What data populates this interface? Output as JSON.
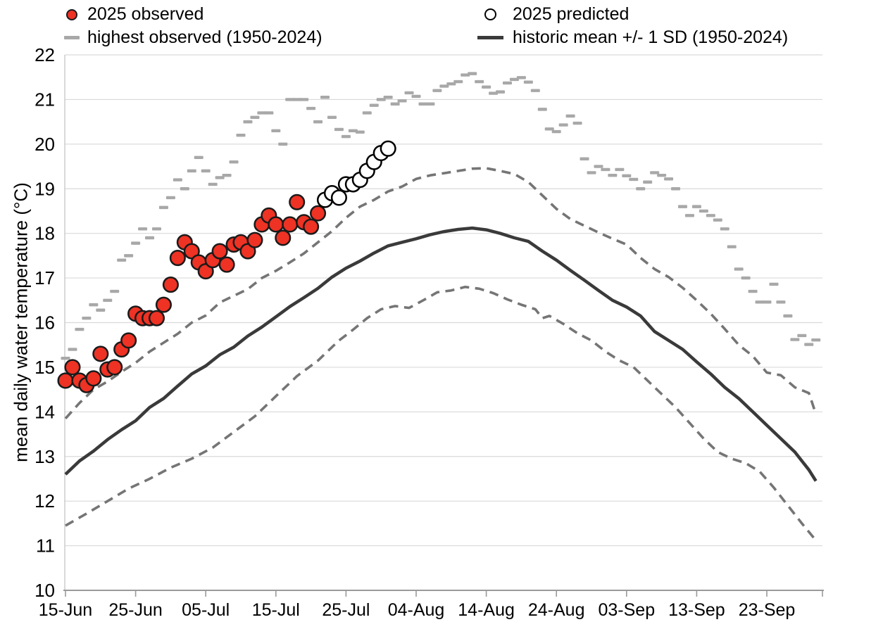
{
  "legend_note": "two-column legend at top of chart",
  "chart_data": {
    "type": "scatter",
    "title": "",
    "ylabel": "mean daily water temperature (°C)",
    "ylim": [
      10,
      22
    ],
    "yticks": [
      10,
      11,
      12,
      13,
      14,
      15,
      16,
      17,
      18,
      19,
      20,
      21,
      22
    ],
    "grid": true,
    "legend_position": "top",
    "x_axis": {
      "start_label": "15-Jun",
      "tick_interval_days": 10,
      "total_days": 108,
      "tick_labels": [
        "15-Jun",
        "25-Jun",
        "05-Jul",
        "15-Jul",
        "25-Jul",
        "04-Aug",
        "14-Aug",
        "24-Aug",
        "03-Sep",
        "13-Sep",
        "23-Sep"
      ]
    },
    "series": [
      {
        "id": "observed-2025",
        "label": "2025 observed",
        "type": "points",
        "marker": "filled-circle",
        "color": "#ee3224",
        "stroke": "#1a1a1a",
        "start_day": 0,
        "step_days": 1,
        "values": [
          14.7,
          15.0,
          14.7,
          14.6,
          14.75,
          15.3,
          14.95,
          15.0,
          15.4,
          15.6,
          16.2,
          16.1,
          16.1,
          16.1,
          16.4,
          16.85,
          17.45,
          17.8,
          17.6,
          17.35,
          17.15,
          17.4,
          17.6,
          17.3,
          17.75,
          17.8,
          17.6,
          17.85,
          18.2,
          18.4,
          18.2,
          17.9,
          18.2,
          18.7,
          18.25,
          18.15,
          18.45
        ]
      },
      {
        "id": "highest-observed",
        "label": "highest observed (1950-2024)",
        "type": "dash-markers",
        "color": "#a8a8a8",
        "start_day": 0,
        "step_days": 1,
        "values": [
          15.2,
          15.4,
          15.85,
          16.1,
          16.4,
          16.28,
          16.5,
          16.7,
          17.4,
          17.5,
          17.78,
          18.1,
          17.9,
          18.1,
          18.58,
          18.8,
          19.2,
          19.0,
          19.4,
          19.7,
          19.4,
          19.1,
          19.25,
          19.3,
          19.6,
          20.2,
          20.5,
          20.6,
          20.7,
          20.7,
          20.3,
          20.0,
          21.0,
          21.0,
          21.0,
          20.8,
          20.5,
          21.05,
          20.6,
          20.33,
          20.17,
          20.3,
          20.27,
          20.7,
          20.87,
          21.0,
          21.05,
          20.9,
          20.97,
          21.15,
          21.07,
          20.9,
          20.9,
          21.2,
          21.3,
          21.35,
          21.4,
          21.55,
          21.58,
          21.4,
          21.28,
          21.14,
          21.17,
          21.37,
          21.45,
          21.49,
          21.39,
          21.2,
          20.78,
          20.34,
          20.28,
          20.43,
          20.63,
          20.47,
          19.67,
          19.36,
          19.5,
          19.43,
          19.3,
          19.43,
          19.29,
          19.21,
          19.0,
          19.15,
          19.36,
          19.3,
          19.22,
          19.0,
          18.6,
          18.4,
          18.6,
          18.5,
          18.4,
          18.3,
          18.1,
          17.7,
          17.2,
          17.0,
          16.7,
          16.46,
          16.46,
          16.86,
          16.46,
          16.15,
          15.62,
          15.71,
          15.51,
          15.61
        ]
      },
      {
        "id": "predicted-2025",
        "label": "2025 predicted",
        "type": "points",
        "marker": "open-circle",
        "color": "#ffffff",
        "stroke": "#000000",
        "start_day": 37,
        "step_days": 1,
        "values": [
          18.75,
          18.9,
          18.8,
          19.1,
          19.1,
          19.2,
          19.4,
          19.6,
          19.8,
          19.9
        ]
      },
      {
        "id": "historic-mean",
        "label": "historic mean +/- 1 SD (1950-2024)",
        "type": "line",
        "color": "#3a3a3a",
        "points": [
          [
            0,
            12.6
          ],
          [
            2,
            12.9
          ],
          [
            4,
            13.12
          ],
          [
            6,
            13.38
          ],
          [
            8,
            13.6
          ],
          [
            10,
            13.8
          ],
          [
            12,
            14.1
          ],
          [
            14,
            14.3
          ],
          [
            16,
            14.58
          ],
          [
            18,
            14.85
          ],
          [
            20,
            15.03
          ],
          [
            22,
            15.28
          ],
          [
            24,
            15.45
          ],
          [
            26,
            15.7
          ],
          [
            28,
            15.9
          ],
          [
            30,
            16.13
          ],
          [
            32,
            16.36
          ],
          [
            34,
            16.56
          ],
          [
            36,
            16.77
          ],
          [
            38,
            17.02
          ],
          [
            40,
            17.22
          ],
          [
            42,
            17.38
          ],
          [
            44,
            17.56
          ],
          [
            46,
            17.72
          ],
          [
            48,
            17.8
          ],
          [
            50,
            17.88
          ],
          [
            52,
            17.97
          ],
          [
            54,
            18.04
          ],
          [
            56,
            18.09
          ],
          [
            58,
            18.12
          ],
          [
            60,
            18.08
          ],
          [
            62,
            18.0
          ],
          [
            64,
            17.9
          ],
          [
            66,
            17.82
          ],
          [
            68,
            17.6
          ],
          [
            70,
            17.4
          ],
          [
            72,
            17.17
          ],
          [
            74,
            16.95
          ],
          [
            76,
            16.72
          ],
          [
            78,
            16.5
          ],
          [
            80,
            16.35
          ],
          [
            82,
            16.15
          ],
          [
            84,
            15.8
          ],
          [
            86,
            15.6
          ],
          [
            88,
            15.4
          ],
          [
            90,
            15.12
          ],
          [
            92,
            14.85
          ],
          [
            94,
            14.55
          ],
          [
            96,
            14.3
          ],
          [
            98,
            14.0
          ],
          [
            100,
            13.7
          ],
          [
            102,
            13.4
          ],
          [
            104,
            13.1
          ],
          [
            106,
            12.7
          ],
          [
            107,
            12.45
          ]
        ]
      },
      {
        "id": "mean-plus-1sd",
        "type": "dashed-line",
        "color": "#757575",
        "points": [
          [
            0,
            13.85
          ],
          [
            2,
            14.2
          ],
          [
            4,
            14.5
          ],
          [
            6,
            14.68
          ],
          [
            8,
            14.9
          ],
          [
            10,
            15.1
          ],
          [
            12,
            15.35
          ],
          [
            14,
            15.55
          ],
          [
            16,
            15.75
          ],
          [
            18,
            16.0
          ],
          [
            20,
            16.16
          ],
          [
            22,
            16.45
          ],
          [
            24,
            16.6
          ],
          [
            26,
            16.75
          ],
          [
            28,
            17.0
          ],
          [
            30,
            17.16
          ],
          [
            32,
            17.35
          ],
          [
            34,
            17.55
          ],
          [
            36,
            17.8
          ],
          [
            38,
            18.05
          ],
          [
            40,
            18.35
          ],
          [
            42,
            18.6
          ],
          [
            44,
            18.75
          ],
          [
            46,
            18.94
          ],
          [
            48,
            19.05
          ],
          [
            50,
            19.22
          ],
          [
            52,
            19.3
          ],
          [
            54,
            19.35
          ],
          [
            56,
            19.4
          ],
          [
            58,
            19.45
          ],
          [
            60,
            19.46
          ],
          [
            62,
            19.4
          ],
          [
            64,
            19.33
          ],
          [
            66,
            19.15
          ],
          [
            68,
            18.85
          ],
          [
            70,
            18.55
          ],
          [
            72,
            18.32
          ],
          [
            74,
            18.17
          ],
          [
            76,
            18.02
          ],
          [
            78,
            17.88
          ],
          [
            80,
            17.75
          ],
          [
            82,
            17.45
          ],
          [
            84,
            17.2
          ],
          [
            86,
            17.02
          ],
          [
            88,
            16.78
          ],
          [
            90,
            16.5
          ],
          [
            92,
            16.2
          ],
          [
            94,
            15.86
          ],
          [
            96,
            15.5
          ],
          [
            98,
            15.25
          ],
          [
            100,
            14.88
          ],
          [
            102,
            14.82
          ],
          [
            104,
            14.55
          ],
          [
            106,
            14.42
          ],
          [
            107,
            13.95
          ]
        ]
      },
      {
        "id": "mean-minus-1sd",
        "type": "dashed-line",
        "color": "#757575",
        "points": [
          [
            0,
            11.45
          ],
          [
            3,
            11.72
          ],
          [
            6,
            12.0
          ],
          [
            9,
            12.28
          ],
          [
            12,
            12.5
          ],
          [
            15,
            12.75
          ],
          [
            18,
            12.95
          ],
          [
            21,
            13.2
          ],
          [
            24,
            13.55
          ],
          [
            27,
            13.9
          ],
          [
            30,
            14.35
          ],
          [
            33,
            14.8
          ],
          [
            36,
            15.15
          ],
          [
            39,
            15.6
          ],
          [
            41,
            15.84
          ],
          [
            43,
            16.1
          ],
          [
            45,
            16.3
          ],
          [
            47,
            16.37
          ],
          [
            49,
            16.33
          ],
          [
            51,
            16.5
          ],
          [
            53,
            16.68
          ],
          [
            55,
            16.72
          ],
          [
            57,
            16.8
          ],
          [
            59,
            16.76
          ],
          [
            61,
            16.66
          ],
          [
            63,
            16.52
          ],
          [
            65,
            16.4
          ],
          [
            67,
            16.3
          ],
          [
            68,
            16.1
          ],
          [
            69,
            16.15
          ],
          [
            71,
            15.97
          ],
          [
            73,
            15.76
          ],
          [
            75,
            15.6
          ],
          [
            77,
            15.35
          ],
          [
            79,
            15.15
          ],
          [
            81,
            15.0
          ],
          [
            83,
            14.7
          ],
          [
            85,
            14.4
          ],
          [
            87,
            14.1
          ],
          [
            89,
            13.75
          ],
          [
            91,
            13.4
          ],
          [
            93,
            13.1
          ],
          [
            95,
            12.95
          ],
          [
            97,
            12.85
          ],
          [
            99,
            12.66
          ],
          [
            101,
            12.3
          ],
          [
            103,
            11.9
          ],
          [
            105,
            11.5
          ],
          [
            107,
            11.12
          ]
        ]
      }
    ]
  },
  "colors": {
    "grid": "#d9d9d9",
    "axis": "#9a9a9a",
    "text": "#000000",
    "observed_fill": "#ee3224",
    "predicted_fill": "#ffffff",
    "marker_stroke": "#1a1a1a",
    "highest_dash": "#a8a8a8",
    "mean_line": "#3a3a3a",
    "sd_dash": "#757575"
  }
}
